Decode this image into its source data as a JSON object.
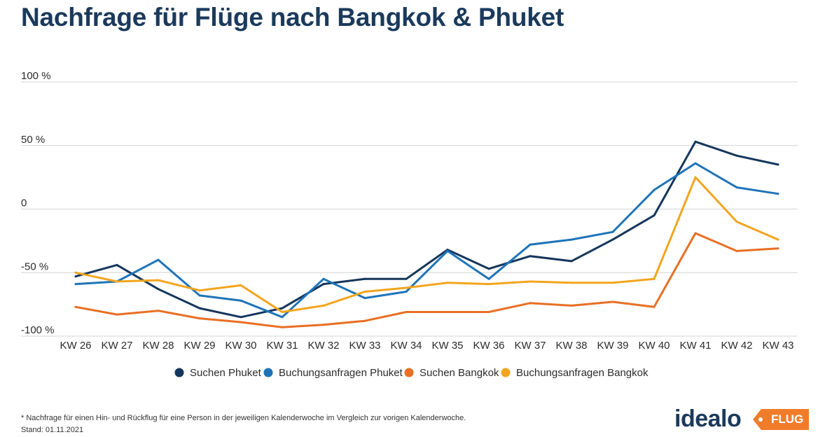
{
  "header": {
    "title": "Nachfrage für Flüge nach Bangkok & Phuket"
  },
  "chart_data": {
    "type": "line",
    "title": "Nachfrage für Flüge nach Bangkok & Phuket",
    "categories": [
      "KW 26",
      "KW 27",
      "KW 28",
      "KW 29",
      "KW 30",
      "KW 31",
      "KW 32",
      "KW 33",
      "KW 34",
      "KW 35",
      "KW 36",
      "KW 37",
      "KW 38",
      "KW 39",
      "KW 40",
      "KW 41",
      "KW 42",
      "KW 43"
    ],
    "y_ticks": [
      {
        "value": 100,
        "label": "100 %"
      },
      {
        "value": 50,
        "label": "50 %"
      },
      {
        "value": 0,
        "label": "0"
      },
      {
        "value": -50,
        "label": "-50 %"
      },
      {
        "value": -100,
        "label": "-100 %"
      }
    ],
    "ylim": [
      -100,
      100
    ],
    "grid": true,
    "legend_position": "bottom",
    "series": [
      {
        "name": "Suchen Phuket",
        "color": "#15365c",
        "values": [
          -53,
          -44,
          -63,
          -78,
          -85,
          -78,
          -59,
          -55,
          -55,
          -32,
          -47,
          -37,
          -41,
          -24,
          -5,
          53,
          42,
          35
        ]
      },
      {
        "name": "Buchungsanfragen Phuket",
        "color": "#1f74b8",
        "values": [
          -59,
          -57,
          -40,
          -68,
          -72,
          -85,
          -55,
          -70,
          -65,
          -33,
          -55,
          -28,
          -24,
          -18,
          15,
          36,
          17,
          12
        ]
      },
      {
        "name": "Suchen Bangkok",
        "color": "#e86f24",
        "values": [
          -77,
          -83,
          -80,
          -86,
          -89,
          -93,
          -91,
          -88,
          -81,
          -81,
          -81,
          -74,
          -76,
          -73,
          -77,
          -19,
          -33,
          -31
        ]
      },
      {
        "name": "Buchungsanfragen Bangkok",
        "color": "#f2a51f",
        "values": [
          -50,
          -57,
          -56,
          -64,
          -60,
          -81,
          -76,
          -65,
          -62,
          -58,
          -59,
          -57,
          -58,
          -58,
          -55,
          25,
          -10,
          -24
        ]
      }
    ]
  },
  "footnote": {
    "line1": "* Nachfrage für einen Hin- und Rückflug für eine Person in der jeweiligen Kalenderwoche im Vergleich zur vorigen Kalenderwoche.",
    "line2": "Stand: 01.11.2021"
  },
  "logo": {
    "word": "idealo",
    "tag": "FLUG",
    "tag_color": "#f07c2a",
    "word_color": "#1b3a5c"
  }
}
